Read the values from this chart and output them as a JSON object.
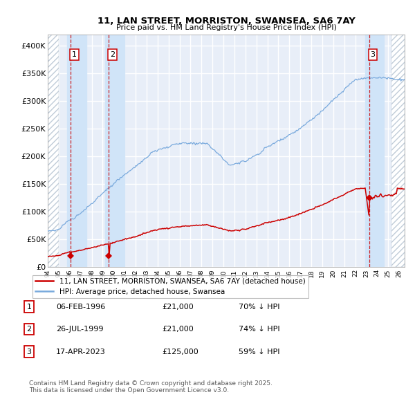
{
  "title1": "11, LAN STREET, MORRISTON, SWANSEA, SA6 7AY",
  "title2": "Price paid vs. HM Land Registry's House Price Index (HPI)",
  "legend_label1": "11, LAN STREET, MORRISTON, SWANSEA, SA6 7AY (detached house)",
  "legend_label2": "HPI: Average price, detached house, Swansea",
  "transactions": [
    {
      "num": 1,
      "date_str": "06-FEB-1996",
      "date_x": 1996.09,
      "price": 21000,
      "hpi_pct": "70% ↓ HPI"
    },
    {
      "num": 2,
      "date_str": "26-JUL-1999",
      "date_x": 1999.57,
      "price": 21000,
      "hpi_pct": "74% ↓ HPI"
    },
    {
      "num": 3,
      "date_str": "17-APR-2023",
      "date_x": 2023.29,
      "price": 125000,
      "hpi_pct": "59% ↓ HPI"
    }
  ],
  "ylim": [
    0,
    420000
  ],
  "xlim": [
    1994.0,
    2026.5
  ],
  "yticks": [
    0,
    50000,
    100000,
    150000,
    200000,
    250000,
    300000,
    350000,
    400000
  ],
  "ytick_labels": [
    "£0",
    "£50K",
    "£100K",
    "£150K",
    "£200K",
    "£250K",
    "£300K",
    "£350K",
    "£400K"
  ],
  "background_color": "#ffffff",
  "plot_bg_color": "#e8eef8",
  "grid_color": "#ffffff",
  "hpi_color": "#7aaadd",
  "price_color": "#cc0000",
  "dashed_color": "#cc0000",
  "shade_color": "#d0e4f8",
  "hatch_fg": "#c0ccd8",
  "footnote": "Contains HM Land Registry data © Crown copyright and database right 2025.\nThis data is licensed under the Open Government Licence v3.0.",
  "shade_ranges": [
    [
      1995.75,
      1997.5
    ],
    [
      1999.25,
      2001.0
    ],
    [
      2022.9,
      2024.6
    ]
  ],
  "hatch_left_end": 1995.0,
  "hatch_right_start": 2025.3
}
